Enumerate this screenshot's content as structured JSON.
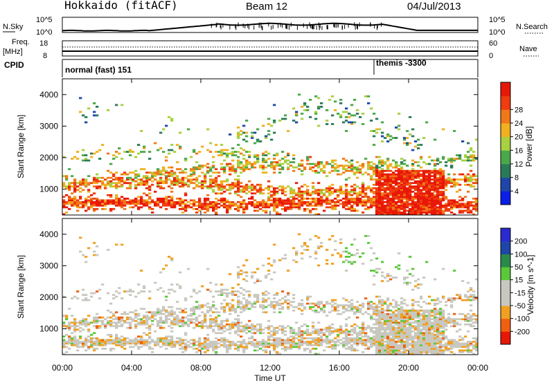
{
  "header": {
    "station": "Hokkaido (fitACF)",
    "beam": "Beam 12",
    "date": "04/Jul/2013"
  },
  "colors": {
    "power": [
      "#0a1ee6",
      "#1e46a8",
      "#2a7a5a",
      "#4aa84a",
      "#a8d040",
      "#f0b020",
      "#f07818",
      "#f03c10",
      "#e81808"
    ],
    "velocity": [
      "#e81808",
      "#f06010",
      "#f0a020",
      "#c8c8c0",
      "#c8c8c0",
      "#5ac83a",
      "#2a8a4a",
      "#1e46a8",
      "#2a2ad0"
    ]
  },
  "chart_data": [
    {
      "name": "noise-panel",
      "type": "line",
      "left_label": "N.Sky",
      "right_label": "N.Search",
      "left_ticks": [
        "10^5",
        "10^0"
      ],
      "right_ticks": [
        "10^5",
        "10^0"
      ]
    },
    {
      "name": "freq-panel",
      "type": "line",
      "left_label": "Freq.",
      "left_unit": "[MHz]",
      "right_label": "Nave",
      "left_ticks": [
        "18",
        "8"
      ],
      "right_ticks": [
        "60",
        "0"
      ]
    },
    {
      "name": "cpid-panel",
      "type": "table",
      "label": "CPID",
      "segments": [
        {
          "text": "normal (fast) 151",
          "start_hour": 0
        },
        {
          "text": "themis -3300",
          "start_hour": 18
        }
      ]
    },
    {
      "name": "power-panel",
      "type": "heatmap",
      "ylabel": "Slant Range [km]",
      "ylim": [
        180,
        4500
      ],
      "yticks": [
        1000,
        2000,
        3000,
        4000
      ],
      "xlim": [
        0,
        24
      ],
      "colorbar_label": "Power [dB]",
      "colorbar_ticks": [
        "4",
        "8",
        "12",
        "16",
        "20",
        "24",
        "28"
      ]
    },
    {
      "name": "velocity-panel",
      "type": "heatmap",
      "ylabel": "Slant Range [km]",
      "ylim": [
        180,
        4500
      ],
      "yticks": [
        1000,
        2000,
        3000,
        4000
      ],
      "xlim": [
        0,
        24
      ],
      "colorbar_label": "Velocity [m s^-1]",
      "colorbar_ticks": [
        "-200",
        "-100",
        "-50",
        "-15",
        "15",
        "50",
        "100",
        "200"
      ]
    }
  ],
  "xaxis": {
    "label": "Time UT",
    "ticks": [
      {
        "hour": 0,
        "label": "00:00"
      },
      {
        "hour": 4,
        "label": "04:00"
      },
      {
        "hour": 8,
        "label": "08:00"
      },
      {
        "hour": 12,
        "label": "12:00"
      },
      {
        "hour": 16,
        "label": "16:00"
      },
      {
        "hour": 20,
        "label": "20:00"
      },
      {
        "hour": 24,
        "label": "00:00"
      }
    ]
  }
}
